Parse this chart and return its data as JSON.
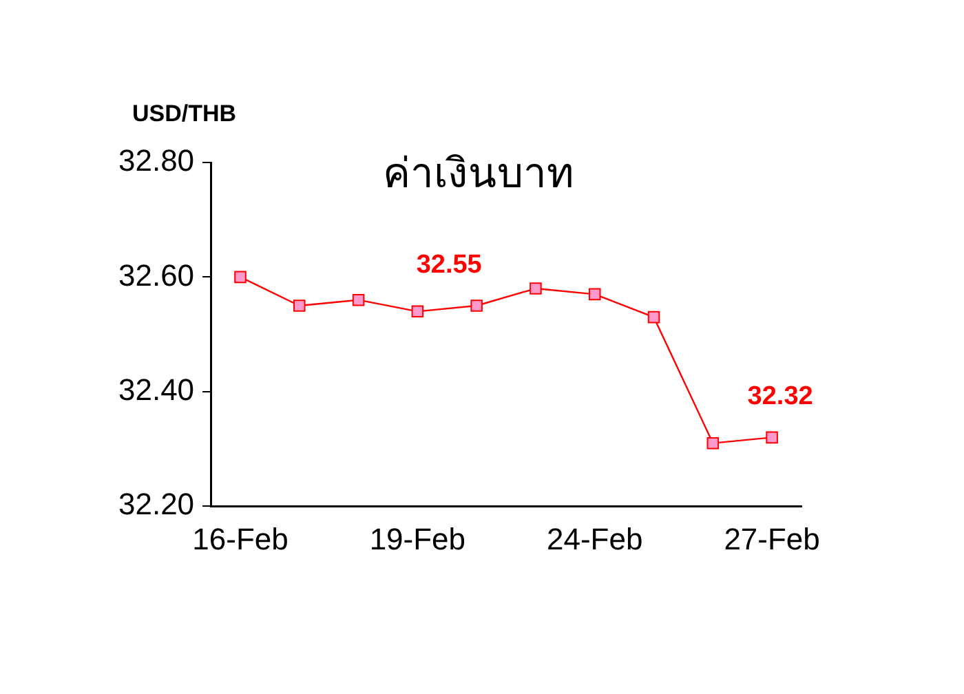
{
  "chart_data": {
    "type": "line",
    "title": "ค่าเงินบาท",
    "ylabel": "USD/THB",
    "categories": [
      "16-Feb",
      null,
      null,
      "19-Feb",
      null,
      null,
      "24-Feb",
      null,
      null,
      "27-Feb"
    ],
    "series": [
      {
        "color": "#ff0000",
        "values": [
          32.6,
          32.55,
          32.56,
          32.54,
          32.55,
          32.58,
          32.57,
          32.53,
          32.31,
          32.32
        ],
        "value_labels": [
          null,
          null,
          null,
          null,
          "32.55",
          null,
          null,
          null,
          null,
          "32.32"
        ]
      }
    ],
    "ylim": [
      32.2,
      32.8
    ],
    "yticks": [
      {
        "value": 32.2,
        "label": "32.20"
      },
      {
        "value": 32.4,
        "label": "32.40"
      },
      {
        "value": 32.6,
        "label": "32.60"
      },
      {
        "value": 32.8,
        "label": "32.80"
      }
    ],
    "marker": "square",
    "grid": false,
    "legend": false
  }
}
